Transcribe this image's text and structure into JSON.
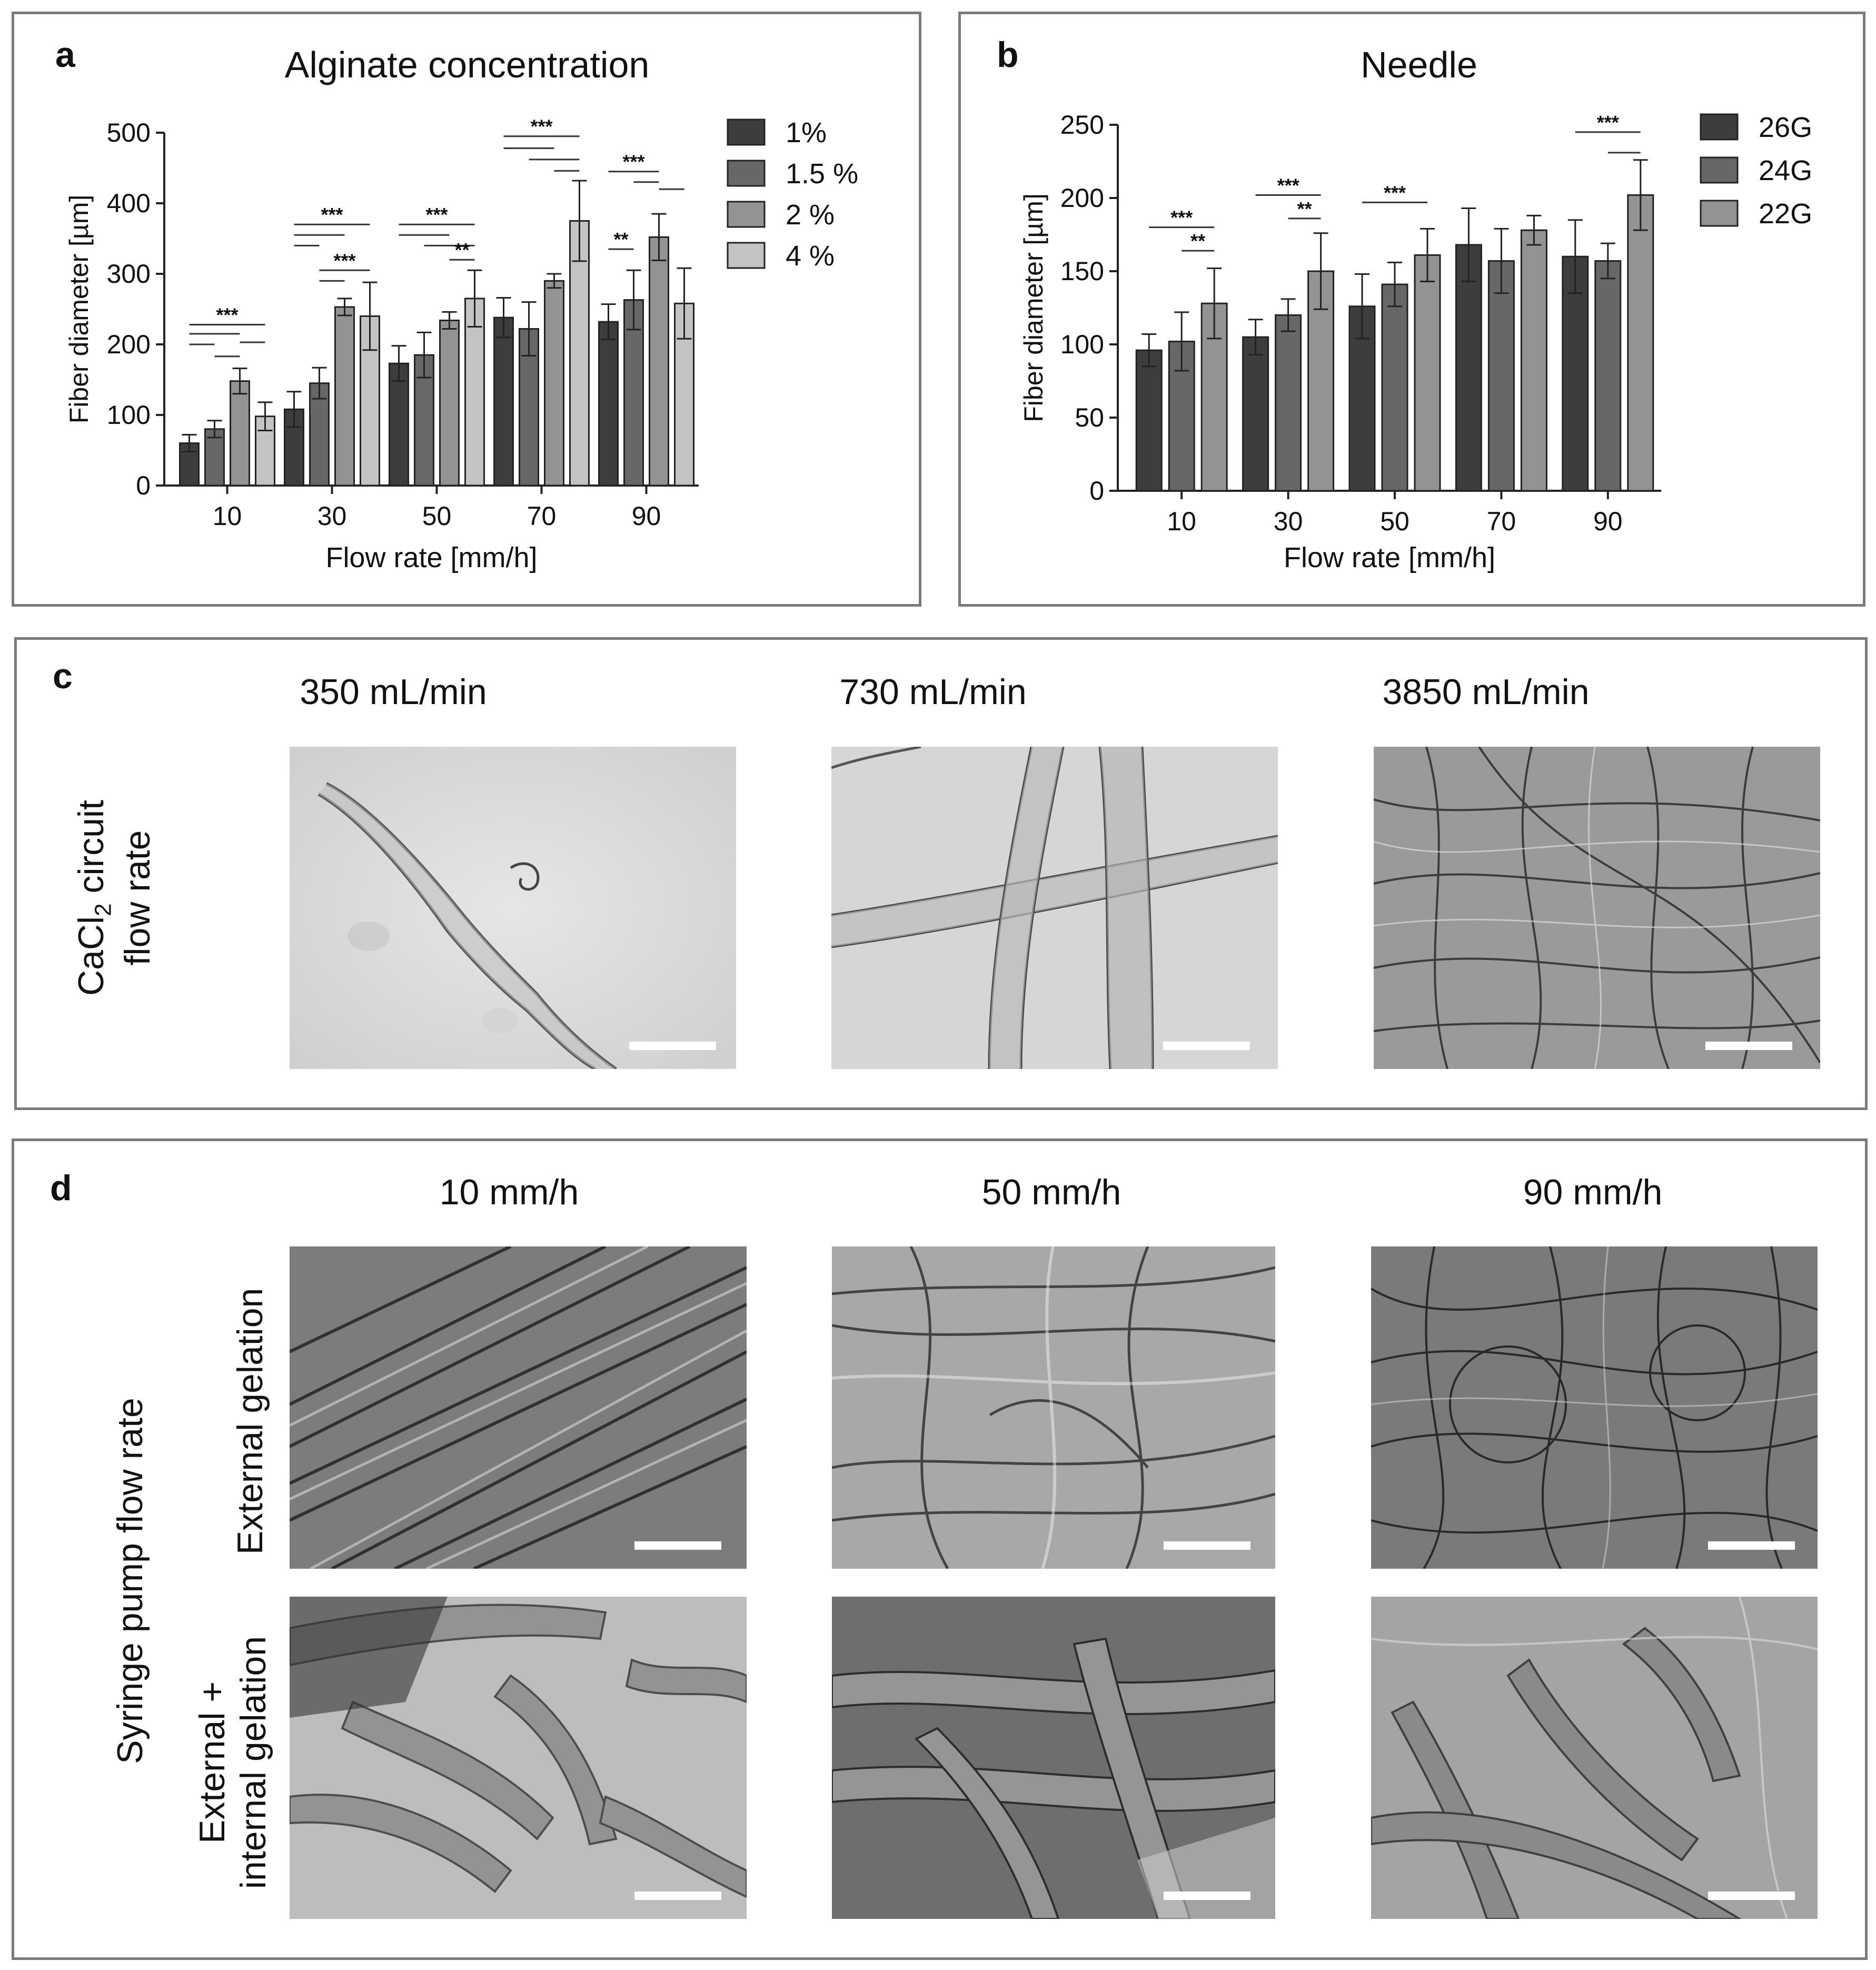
{
  "panel_a": {
    "label": "a",
    "chart_data": {
      "type": "bar",
      "title": "Alginate concentration",
      "xlabel": "Flow rate [mm/h]",
      "ylabel": "Fiber diameter [µm]",
      "ylim": [
        0,
        500
      ],
      "yticks": [
        "0",
        "100",
        "200",
        "300",
        "400",
        "500"
      ],
      "categories": [
        "10",
        "30",
        "50",
        "70",
        "90"
      ],
      "legend": "right",
      "series": [
        {
          "name": "1%",
          "color": "#3d3d3d",
          "values": [
            60,
            108,
            173,
            238,
            232
          ],
          "errors": [
            12,
            25,
            25,
            28,
            25
          ]
        },
        {
          "name": "1.5 %",
          "color": "#676767",
          "values": [
            80,
            145,
            185,
            222,
            263
          ],
          "errors": [
            12,
            22,
            32,
            38,
            42
          ]
        },
        {
          "name": "2 %",
          "color": "#939393",
          "values": [
            148,
            253,
            234,
            290,
            352
          ],
          "errors": [
            18,
            12,
            12,
            10,
            33
          ]
        },
        {
          "name": "4 %",
          "color": "#c3c3c3",
          "values": [
            98,
            240,
            265,
            375,
            258
          ],
          "errors": [
            20,
            48,
            40,
            57,
            50
          ]
        }
      ],
      "significance": [
        "***",
        "***",
        "***",
        "***",
        "**",
        "***",
        "**",
        "***"
      ]
    }
  },
  "panel_b": {
    "label": "b",
    "chart_data": {
      "type": "bar",
      "title": "Needle",
      "xlabel": "Flow rate [mm/h]",
      "ylabel": "Fiber diameter [µm]",
      "ylim": [
        0,
        250
      ],
      "yticks": [
        "0",
        "50",
        "100",
        "150",
        "200",
        "250"
      ],
      "categories": [
        "10",
        "30",
        "50",
        "70",
        "90"
      ],
      "legend": "right",
      "series": [
        {
          "name": "26G",
          "color": "#3d3d3d",
          "values": [
            96,
            105,
            126,
            168,
            160
          ],
          "errors": [
            11,
            12,
            22,
            25,
            25
          ]
        },
        {
          "name": "24G",
          "color": "#676767",
          "values": [
            102,
            120,
            141,
            157,
            157
          ],
          "errors": [
            20,
            11,
            15,
            22,
            12
          ]
        },
        {
          "name": "22G",
          "color": "#939393",
          "values": [
            128,
            150,
            161,
            178,
            202
          ],
          "errors": [
            24,
            26,
            18,
            10,
            24
          ]
        }
      ],
      "significance": [
        "***",
        "**",
        "***",
        "**",
        "***",
        "***"
      ]
    }
  },
  "panel_c": {
    "label": "c",
    "row_label_line1": "CaCl",
    "row_label_sub": "2",
    "row_label_rest": " circuit",
    "row_label_line2": "flow rate",
    "columns": [
      "350 mL/min",
      "730 mL/min",
      "3850 mL/min"
    ]
  },
  "panel_d": {
    "label": "d",
    "row_group_label": "Syringe pump flow rate",
    "row1_label": "External gelation",
    "row2_label_line1": "External +",
    "row2_label_line2": "internal gelation",
    "columns": [
      "10 mm/h",
      "50 mm/h",
      "90 mm/h"
    ]
  }
}
